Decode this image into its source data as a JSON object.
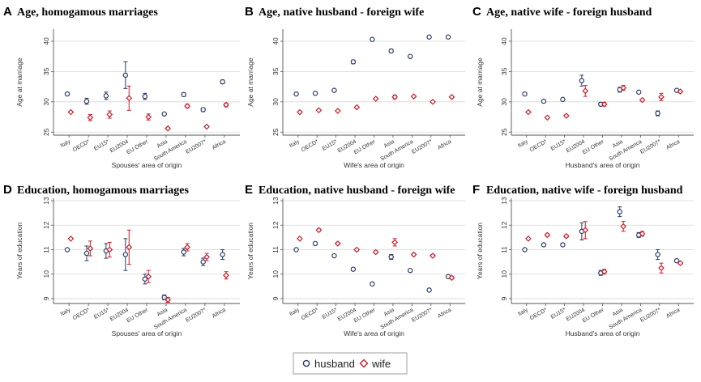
{
  "legend": {
    "items": [
      {
        "label": "husband",
        "color": "#2b3a67",
        "marker": "circle"
      },
      {
        "label": "wife",
        "color": "#c81e2b",
        "marker": "diamond"
      }
    ]
  },
  "colors": {
    "husband": "#2b3a67",
    "wife": "#c81e2b",
    "grid": "#d6d6d6",
    "axis": "#555555"
  },
  "chart_data": [
    {
      "type": "scatter",
      "letter": "A",
      "title": "Age, homogamous marriages",
      "xlabel": "Spouses' area of origin",
      "ylabel": "Age at marriage",
      "ylim": [
        24.5,
        42
      ],
      "yticks": [
        25,
        30,
        35,
        40
      ],
      "grid": true,
      "categories": [
        "Italy",
        "OECD",
        "EU15",
        "EU2004",
        "EU Other",
        "Asia",
        "South America",
        "EU2007",
        "Africa"
      ],
      "category_markers": [
        "",
        "*",
        "*",
        "",
        "",
        "",
        "",
        "*",
        ""
      ],
      "series": [
        {
          "name": "husband",
          "values": [
            31.3,
            30.1,
            31.0,
            34.4,
            30.9,
            28.0,
            31.2,
            28.7,
            33.3
          ],
          "ci_low": [
            31.1,
            29.6,
            30.4,
            32.2,
            30.4,
            27.8,
            30.9,
            28.4,
            33.0
          ],
          "ci_high": [
            31.5,
            30.6,
            31.6,
            36.6,
            31.4,
            28.2,
            31.5,
            29.0,
            33.6
          ]
        },
        {
          "name": "wife",
          "values": [
            28.3,
            27.4,
            27.9,
            30.6,
            27.5,
            25.6,
            29.3,
            25.9,
            29.5
          ],
          "ci_low": [
            28.1,
            26.9,
            27.3,
            28.6,
            27.0,
            25.4,
            29.0,
            25.7,
            29.2
          ],
          "ci_high": [
            28.5,
            27.9,
            28.5,
            32.6,
            28.0,
            25.8,
            29.6,
            26.1,
            29.8
          ]
        }
      ]
    },
    {
      "type": "scatter",
      "letter": "B",
      "title": "Age, native husband - foreign wife",
      "xlabel": "Wife's area of origin",
      "ylabel": "Age at marriage",
      "ylim": [
        24.5,
        42
      ],
      "yticks": [
        25,
        30,
        35,
        40
      ],
      "grid": true,
      "categories": [
        "Italy",
        "OECD",
        "EU15",
        "EU2004",
        "EU Other",
        "Asia",
        "South America",
        "EU2007",
        "Africa"
      ],
      "category_markers": [
        "",
        "*",
        "*",
        "",
        "",
        "",
        "",
        "*",
        ""
      ],
      "series": [
        {
          "name": "husband",
          "values": [
            31.3,
            31.4,
            31.9,
            36.6,
            40.3,
            38.4,
            37.5,
            40.7,
            40.7
          ],
          "ci_low": [
            31.1,
            31.2,
            31.7,
            36.3,
            40.1,
            38.1,
            37.3,
            40.5,
            40.5
          ],
          "ci_high": [
            31.5,
            31.6,
            32.1,
            36.9,
            40.5,
            38.7,
            37.7,
            40.9,
            40.9
          ]
        },
        {
          "name": "wife",
          "values": [
            28.3,
            28.6,
            28.5,
            29.1,
            30.5,
            30.8,
            30.9,
            30.0,
            30.8
          ],
          "ci_low": [
            28.1,
            28.4,
            28.3,
            28.9,
            30.3,
            30.5,
            30.7,
            29.8,
            30.6
          ],
          "ci_high": [
            28.5,
            28.8,
            28.7,
            29.3,
            30.7,
            31.1,
            31.1,
            30.2,
            31.0
          ]
        }
      ]
    },
    {
      "type": "scatter",
      "letter": "C",
      "title": "Age, native wife - foreign husband",
      "xlabel": "Husband's area of origin",
      "ylabel": "Age at marriage",
      "ylim": [
        24.5,
        42
      ],
      "yticks": [
        25,
        30,
        35,
        40
      ],
      "grid": true,
      "categories": [
        "Italy",
        "OECD",
        "EU15",
        "EU2004",
        "EU Other",
        "Asia",
        "South America",
        "EU2007",
        "Africa"
      ],
      "category_markers": [
        "",
        "*",
        "*",
        "",
        "",
        "",
        "",
        "*",
        ""
      ],
      "series": [
        {
          "name": "husband",
          "values": [
            31.3,
            30.1,
            30.4,
            33.5,
            29.6,
            32.0,
            31.6,
            28.1,
            31.9
          ],
          "ci_low": [
            31.1,
            29.9,
            30.2,
            32.6,
            29.3,
            31.6,
            31.4,
            27.7,
            31.7
          ],
          "ci_high": [
            31.5,
            30.3,
            30.6,
            34.4,
            29.9,
            32.4,
            31.8,
            28.5,
            32.1
          ]
        },
        {
          "name": "wife",
          "values": [
            28.3,
            27.4,
            27.7,
            31.8,
            29.6,
            32.3,
            30.3,
            30.8,
            31.7
          ],
          "ci_low": [
            28.1,
            27.2,
            27.5,
            30.9,
            29.3,
            31.9,
            30.1,
            30.2,
            31.5
          ],
          "ci_high": [
            28.5,
            27.6,
            27.9,
            32.7,
            29.9,
            32.7,
            30.5,
            31.4,
            31.9
          ]
        }
      ]
    },
    {
      "type": "scatter",
      "letter": "D",
      "title": "Education, homogamous marriages",
      "xlabel": "Spouses' area of origin",
      "ylabel": "Years of education",
      "ylim": [
        8.8,
        13.1
      ],
      "yticks": [
        9,
        10,
        11,
        12,
        13
      ],
      "grid": true,
      "categories": [
        "Italy",
        "OECD",
        "EU15",
        "EU2004",
        "EU Other",
        "Asia",
        "South America",
        "EU2007",
        "Africa"
      ],
      "category_markers": [
        "",
        "*",
        "*",
        "",
        "",
        "",
        "",
        "*",
        ""
      ],
      "series": [
        {
          "name": "husband",
          "values": [
            11.0,
            10.85,
            10.95,
            10.8,
            9.8,
            9.05,
            10.9,
            10.5,
            10.8
          ],
          "ci_low": [
            10.98,
            10.55,
            10.65,
            10.15,
            9.6,
            8.95,
            10.75,
            10.35,
            10.6
          ],
          "ci_high": [
            11.02,
            11.15,
            11.25,
            11.45,
            10.0,
            9.15,
            11.05,
            10.65,
            11.0
          ]
        },
        {
          "name": "wife",
          "values": [
            11.45,
            11.05,
            11.0,
            11.1,
            9.9,
            8.95,
            11.1,
            10.7,
            9.95
          ],
          "ci_low": [
            11.43,
            10.75,
            10.7,
            10.4,
            9.65,
            8.85,
            10.95,
            10.55,
            9.8
          ],
          "ci_high": [
            11.47,
            11.35,
            11.3,
            11.8,
            10.15,
            9.05,
            11.25,
            10.85,
            10.1
          ]
        }
      ]
    },
    {
      "type": "scatter",
      "letter": "E",
      "title": "Education, native husband - foreign wife",
      "xlabel": "Wife's area of origin",
      "ylabel": "Years of education",
      "ylim": [
        8.8,
        13.1
      ],
      "yticks": [
        9,
        10,
        11,
        12,
        13
      ],
      "grid": true,
      "categories": [
        "Italy",
        "OECD",
        "EU15",
        "EU2004",
        "EU Other",
        "Asia",
        "South America",
        "EU2007",
        "Africa"
      ],
      "category_markers": [
        "",
        "*",
        "*",
        "",
        "",
        "",
        "",
        "*",
        ""
      ],
      "series": [
        {
          "name": "husband",
          "values": [
            11.0,
            11.25,
            10.75,
            10.2,
            9.6,
            10.7,
            10.15,
            9.35,
            9.9
          ],
          "ci_low": [
            10.98,
            11.2,
            10.7,
            10.15,
            9.55,
            10.6,
            10.1,
            9.3,
            9.85
          ],
          "ci_high": [
            11.02,
            11.3,
            10.8,
            10.25,
            9.65,
            10.8,
            10.2,
            9.4,
            9.95
          ]
        },
        {
          "name": "wife",
          "values": [
            11.45,
            11.8,
            11.25,
            11.0,
            10.9,
            11.3,
            10.8,
            10.75,
            9.85
          ],
          "ci_low": [
            11.43,
            11.75,
            11.2,
            10.95,
            10.85,
            11.15,
            10.75,
            10.7,
            9.8
          ],
          "ci_high": [
            11.47,
            11.85,
            11.3,
            11.05,
            10.95,
            11.45,
            10.85,
            10.8,
            9.9
          ]
        }
      ]
    },
    {
      "type": "scatter",
      "letter": "F",
      "title": "Education, native wife - foreign husband",
      "xlabel": "Husband's area of origin",
      "ylabel": "Years of education",
      "ylim": [
        8.8,
        13.1
      ],
      "yticks": [
        9,
        10,
        11,
        12,
        13
      ],
      "grid": true,
      "categories": [
        "Italy",
        "OECD",
        "EU15",
        "EU2004",
        "EU Other",
        "Asia",
        "South America",
        "EU2007",
        "Africa"
      ],
      "category_markers": [
        "",
        "*",
        "*",
        "",
        "",
        "",
        "",
        "*",
        ""
      ],
      "series": [
        {
          "name": "husband",
          "values": [
            11.0,
            11.2,
            11.2,
            11.75,
            10.05,
            12.55,
            11.6,
            10.8,
            10.55
          ],
          "ci_low": [
            10.98,
            11.15,
            11.15,
            11.4,
            9.95,
            12.35,
            11.5,
            10.6,
            10.5
          ],
          "ci_high": [
            11.02,
            11.25,
            11.25,
            12.1,
            10.15,
            12.75,
            11.7,
            11.0,
            10.6
          ]
        },
        {
          "name": "wife",
          "values": [
            11.45,
            11.6,
            11.55,
            11.8,
            10.1,
            11.95,
            11.65,
            10.25,
            10.45
          ],
          "ci_low": [
            11.43,
            11.55,
            11.5,
            11.45,
            10.0,
            11.75,
            11.55,
            10.05,
            10.4
          ],
          "ci_high": [
            11.47,
            11.65,
            11.6,
            12.15,
            10.2,
            12.15,
            11.75,
            10.45,
            10.5
          ]
        }
      ]
    }
  ]
}
